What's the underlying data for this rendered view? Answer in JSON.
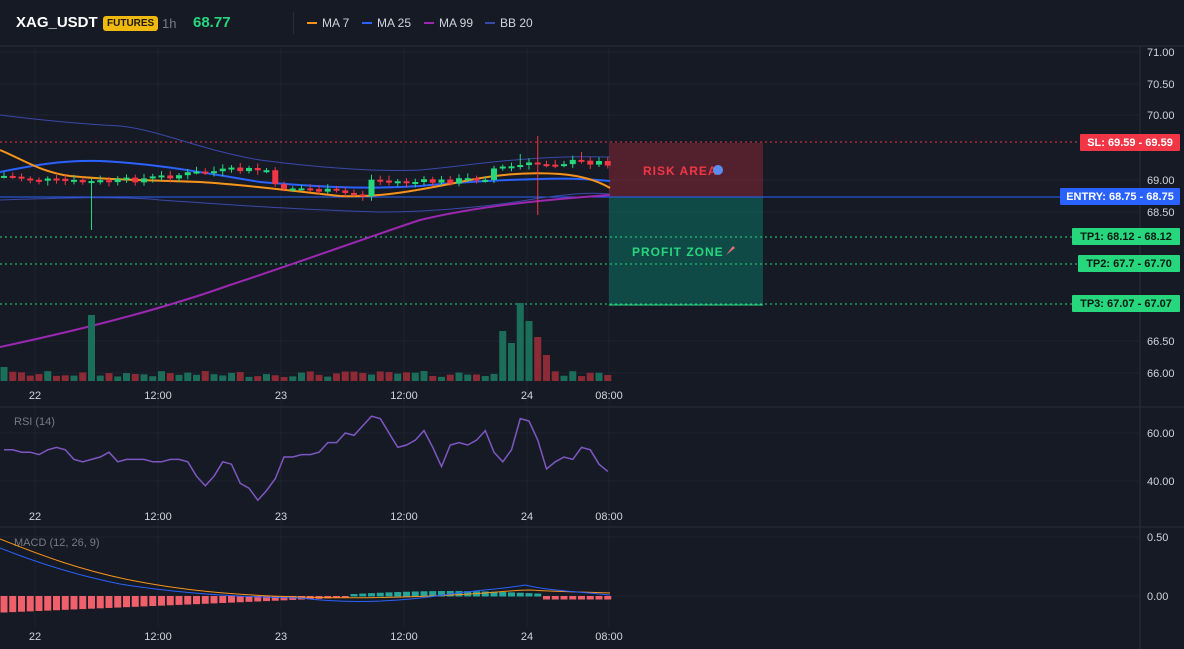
{
  "header": {
    "symbol": "XAG_USDT",
    "badge": "FUTURES",
    "timeframe": "1h",
    "last_price": "68.77",
    "indicators": [
      {
        "label": "MA 7",
        "color": "#f7931a"
      },
      {
        "label": "MA 25",
        "color": "#2962ff"
      },
      {
        "label": "MA 99",
        "color": "#9c27b0"
      },
      {
        "label": "BB 20",
        "color": "#3949ab"
      }
    ]
  },
  "main_chart": {
    "price_ticks": [
      "71.00",
      "70.50",
      "70.00",
      "69.00",
      "68.50",
      "66.50",
      "66.00"
    ],
    "levels": {
      "sl": {
        "label": "SL: 69.59",
        "value": "69.59",
        "color": "#f23645"
      },
      "entry": {
        "label": "ENTRY: 68.75",
        "value": "68.75",
        "color": "#2962ff"
      },
      "tp1": {
        "label": "TP1: 68.12",
        "value": "68.12",
        "color": "#26d77d"
      },
      "tp2": {
        "label": "TP2: 67.7",
        "value": "67.70",
        "color": "#26d77d"
      },
      "tp3": {
        "label": "TP3: 67.07",
        "value": "67.07",
        "color": "#26d77d"
      }
    },
    "risk_label": "RISK AREA",
    "profit_label": "PROFIT ZONE",
    "risk_icon": "shield-icon",
    "profit_icon": "rocket-icon"
  },
  "time_axis": [
    "22",
    "12:00",
    "23",
    "12:00",
    "24",
    "08:00"
  ],
  "rsi": {
    "title": "RSI (14)",
    "ticks": [
      "60.00",
      "40.00"
    ],
    "line_color": "#7e57c2",
    "values": [
      53,
      53,
      52,
      52,
      51,
      53,
      54,
      53,
      49,
      48,
      49,
      50,
      52,
      48,
      49,
      49,
      49,
      48,
      48,
      49,
      49,
      48,
      42,
      38,
      42,
      48,
      47,
      39,
      37,
      32,
      36,
      41,
      50,
      50,
      51,
      51,
      52,
      56,
      56,
      60,
      59,
      63,
      67,
      66,
      60,
      54,
      55,
      57,
      61,
      54,
      46,
      55,
      56,
      55,
      57,
      61,
      52,
      48,
      53,
      66,
      65,
      57,
      45,
      48,
      50,
      49,
      54,
      53,
      47,
      44
    ]
  },
  "macd": {
    "title": "MACD (12, 26, 9)",
    "ticks": [
      "0.50",
      "0.00"
    ],
    "macd_color": "#2962ff",
    "signal_color": "#f7931a"
  }
}
